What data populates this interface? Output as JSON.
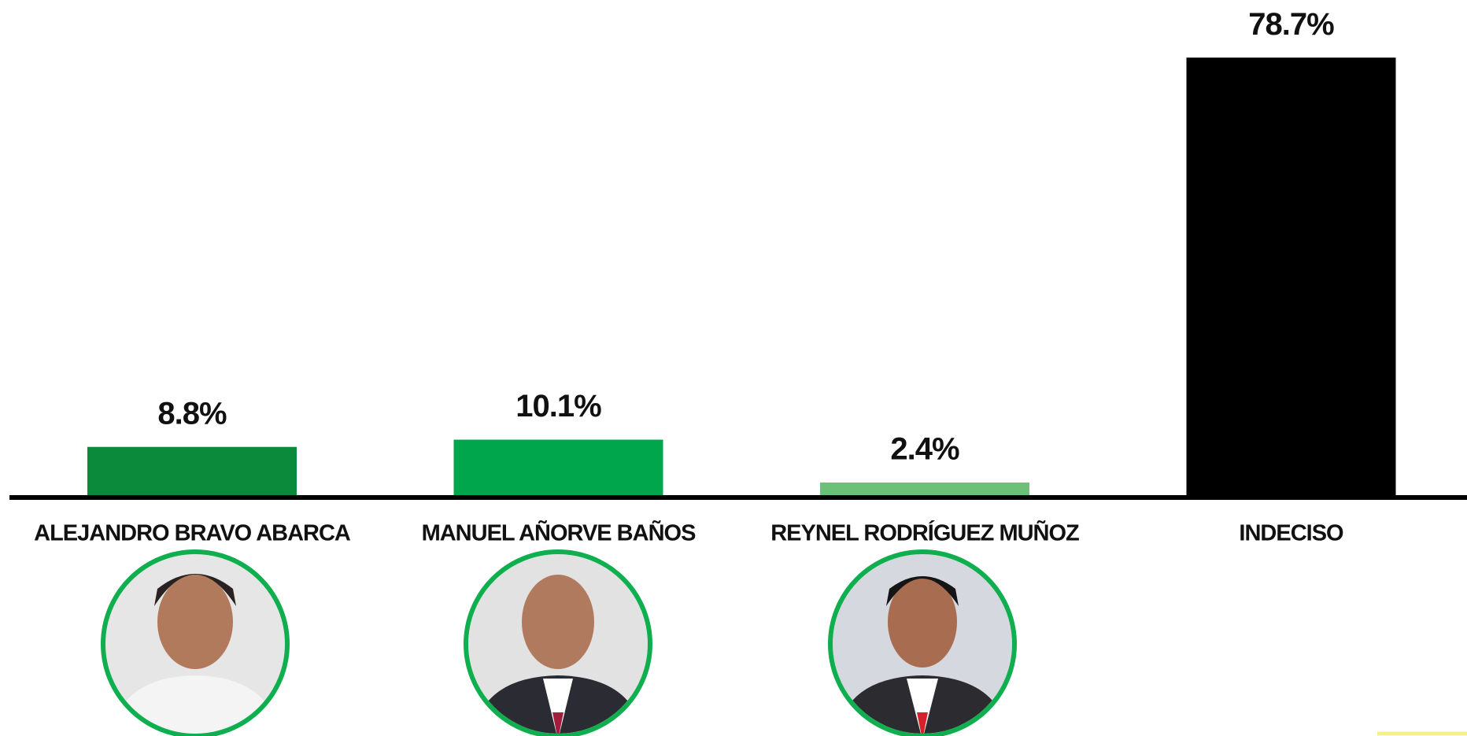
{
  "chart_data": {
    "type": "bar",
    "categories": [
      "ALEJANDRO BRAVO ABARCA",
      "MANUEL AÑORVE BAÑOS",
      "REYNEL RODRÍGUEZ MUÑOZ",
      "INDECISO"
    ],
    "values": [
      8.8,
      10.1,
      2.4,
      78.7
    ],
    "value_labels": [
      "8.8%",
      "10.1%",
      "2.4%",
      "78.7%"
    ],
    "colors": [
      "#0b8a3c",
      "#00a64c",
      "#6cc17a",
      "#000000"
    ],
    "ylim": [
      0,
      80
    ]
  }
}
